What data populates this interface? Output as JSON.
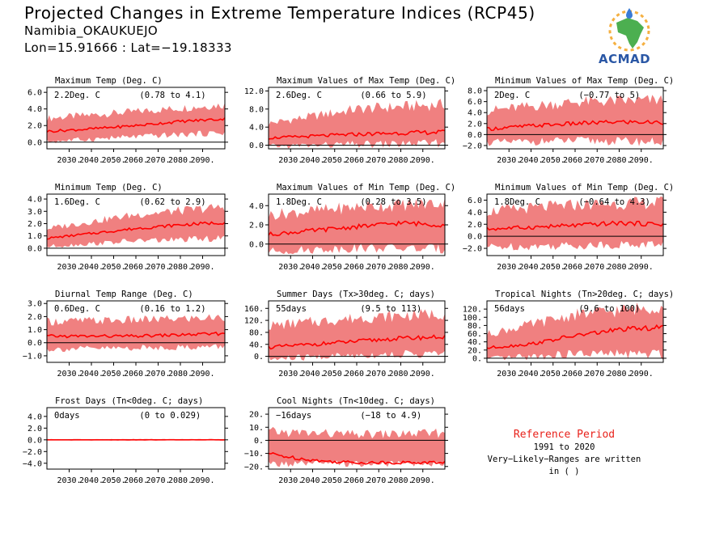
{
  "header": {
    "title": "Projected Changes in Extreme Temperature Indices (RCP45)",
    "station": "Namibia_OKAUKUEJO",
    "coords": "Lon=15.91666 : Lat=−19.18333"
  },
  "logo": {
    "text": "ACMAD",
    "colors": {
      "africa": "#4caf50",
      "sun": "#f5b041",
      "drop": "#3a7bd5"
    }
  },
  "reference": {
    "title": "Reference Period",
    "period": "1991 to 2020",
    "note": "Very−Likely−Ranges are written in ( )"
  },
  "colors": {
    "band": "#f08080",
    "line": "#ff0000",
    "zero": "#000000"
  },
  "chart_data": [
    {
      "type": "area",
      "title": "Maximum Temp (Deg. C)",
      "value_label": "2.2Deg. C",
      "range_label": "(0.78 to 4.1)",
      "ylim": [
        -0.8,
        6.6
      ],
      "yticks": [
        0,
        2,
        4,
        6
      ],
      "ytick_labels": [
        "0.0",
        "2.0",
        "4.0",
        "6.0"
      ],
      "x": [
        2020,
        2100
      ],
      "xticks": [
        2030,
        2040,
        2050,
        2060,
        2070,
        2080,
        2090
      ],
      "xtick_labels": [
        "2030.",
        "2040.",
        "2050.",
        "2060.",
        "2070.",
        "2080.",
        "2090."
      ],
      "median": [
        [
          2020,
          1.3
        ],
        [
          2040,
          1.6
        ],
        [
          2060,
          2.0
        ],
        [
          2080,
          2.5
        ],
        [
          2100,
          2.8
        ]
      ],
      "band_low": [
        [
          2020,
          0.2
        ],
        [
          2060,
          0.8
        ],
        [
          2100,
          1.3
        ]
      ],
      "band_high": [
        [
          2020,
          2.7
        ],
        [
          2060,
          3.5
        ],
        [
          2100,
          4.3
        ]
      ]
    },
    {
      "type": "area",
      "title": "Maximum Values of Max Temp (Deg. C)",
      "value_label": "2.6Deg. C",
      "range_label": "(0.66 to 5.9)",
      "ylim": [
        -0.8,
        12.8
      ],
      "yticks": [
        0,
        4,
        8,
        12
      ],
      "ytick_labels": [
        "0.0",
        "4.0",
        "8.0",
        "12.0"
      ],
      "x": [
        2020,
        2100
      ],
      "xticks": [
        2030,
        2040,
        2050,
        2060,
        2070,
        2080,
        2090
      ],
      "xtick_labels": [
        "2030.",
        "2040.",
        "2050.",
        "2060.",
        "2070.",
        "2080.",
        "2090."
      ],
      "median": [
        [
          2020,
          1.6
        ],
        [
          2040,
          2.0
        ],
        [
          2060,
          2.4
        ],
        [
          2080,
          2.7
        ],
        [
          2100,
          2.9
        ]
      ],
      "band_low": [
        [
          2020,
          0.0
        ],
        [
          2060,
          0.5
        ],
        [
          2100,
          0.8
        ]
      ],
      "band_high": [
        [
          2020,
          4.5
        ],
        [
          2060,
          7.5
        ],
        [
          2100,
          8.5
        ]
      ]
    },
    {
      "type": "area",
      "title": "Minimum Values of Max Temp (Deg. C)",
      "value_label": "2Deg. C",
      "range_label": "(−0.77 to 5)",
      "ylim": [
        -2.6,
        8.6
      ],
      "yticks": [
        -2,
        0,
        2,
        4,
        6,
        8
      ],
      "ytick_labels": [
        "−2.0",
        "0.0",
        "2.0",
        "4.0",
        "6.0",
        "8.0"
      ],
      "x": [
        2020,
        2100
      ],
      "xticks": [
        2030,
        2040,
        2050,
        2060,
        2070,
        2080,
        2090
      ],
      "xtick_labels": [
        "2030.",
        "2040.",
        "2050.",
        "2060.",
        "2070.",
        "2080.",
        "2090."
      ],
      "median": [
        [
          2020,
          1.0
        ],
        [
          2040,
          1.6
        ],
        [
          2060,
          2.0
        ],
        [
          2080,
          2.3
        ],
        [
          2100,
          2.2
        ]
      ],
      "band_low": [
        [
          2020,
          -1.2
        ],
        [
          2060,
          -0.8
        ],
        [
          2100,
          -1.0
        ]
      ],
      "band_high": [
        [
          2020,
          4.0
        ],
        [
          2060,
          5.5
        ],
        [
          2100,
          5.8
        ]
      ]
    },
    {
      "type": "area",
      "title": "Minimum Temp (Deg. C)",
      "value_label": "1.6Deg. C",
      "range_label": "(0.62 to 2.9)",
      "ylim": [
        -0.6,
        4.4
      ],
      "yticks": [
        0,
        1,
        2,
        3,
        4
      ],
      "ytick_labels": [
        "0.0",
        "1.0",
        "2.0",
        "3.0",
        "4.0"
      ],
      "x": [
        2020,
        2100
      ],
      "xticks": [
        2030,
        2040,
        2050,
        2060,
        2070,
        2080,
        2090
      ],
      "xtick_labels": [
        "2030.",
        "2040.",
        "2050.",
        "2060.",
        "2070.",
        "2080.",
        "2090."
      ],
      "median": [
        [
          2020,
          0.8
        ],
        [
          2040,
          1.2
        ],
        [
          2060,
          1.6
        ],
        [
          2080,
          1.9
        ],
        [
          2100,
          2.1
        ]
      ],
      "band_low": [
        [
          2020,
          0.2
        ],
        [
          2060,
          0.7
        ],
        [
          2100,
          0.9
        ]
      ],
      "band_high": [
        [
          2020,
          1.5
        ],
        [
          2060,
          2.6
        ],
        [
          2100,
          3.2
        ]
      ]
    },
    {
      "type": "area",
      "title": "Maximum Values of Min Temp (Deg. C)",
      "value_label": "1.8Deg. C",
      "range_label": "(0.28 to 3.5)",
      "ylim": [
        -1.2,
        5.2
      ],
      "yticks": [
        0,
        2,
        4
      ],
      "ytick_labels": [
        "0.0",
        "2.0",
        "4.0"
      ],
      "x": [
        2020,
        2100
      ],
      "xticks": [
        2030,
        2040,
        2050,
        2060,
        2070,
        2080,
        2090
      ],
      "xtick_labels": [
        "2030.",
        "2040.",
        "2050.",
        "2060.",
        "2070.",
        "2080.",
        "2090."
      ],
      "median": [
        [
          2020,
          1.0
        ],
        [
          2040,
          1.4
        ],
        [
          2060,
          1.8
        ],
        [
          2080,
          2.2
        ],
        [
          2100,
          2.0
        ]
      ],
      "band_low": [
        [
          2020,
          -0.6
        ],
        [
          2060,
          -0.2
        ],
        [
          2100,
          -0.3
        ]
      ],
      "band_high": [
        [
          2020,
          2.8
        ],
        [
          2060,
          3.6
        ],
        [
          2100,
          4.0
        ]
      ]
    },
    {
      "type": "area",
      "title": "Minimum Values of Min Temp (Deg. C)",
      "value_label": "1.8Deg. C",
      "range_label": "(−0.64 to 4.3)",
      "ylim": [
        -3.2,
        7.0
      ],
      "yticks": [
        -2,
        0,
        2,
        4,
        6
      ],
      "ytick_labels": [
        "−2.0",
        "0.0",
        "2.0",
        "4.0",
        "6.0"
      ],
      "x": [
        2020,
        2100
      ],
      "xticks": [
        2030,
        2040,
        2050,
        2060,
        2070,
        2080,
        2090
      ],
      "xtick_labels": [
        "2030.",
        "2040.",
        "2050.",
        "2060.",
        "2070.",
        "2080.",
        "2090."
      ],
      "median": [
        [
          2020,
          1.2
        ],
        [
          2040,
          1.5
        ],
        [
          2060,
          1.8
        ],
        [
          2080,
          2.2
        ],
        [
          2100,
          2.0
        ]
      ],
      "band_low": [
        [
          2020,
          -1.5
        ],
        [
          2060,
          -1.2
        ],
        [
          2100,
          -1.0
        ]
      ],
      "band_high": [
        [
          2020,
          3.8
        ],
        [
          2060,
          4.8
        ],
        [
          2100,
          5.2
        ]
      ]
    },
    {
      "type": "area",
      "title": "Diurnal Temp Range (Deg. C)",
      "value_label": "0.6Deg. C",
      "range_label": "(0.16 to 1.2)",
      "ylim": [
        -1.5,
        3.2
      ],
      "yticks": [
        -1,
        0,
        1,
        2,
        3
      ],
      "ytick_labels": [
        "−1.0",
        "0.0",
        "1.0",
        "2.0",
        "3.0"
      ],
      "x": [
        2020,
        2100
      ],
      "xticks": [
        2030,
        2040,
        2050,
        2060,
        2070,
        2080,
        2090
      ],
      "xtick_labels": [
        "2030.",
        "2040.",
        "2050.",
        "2060.",
        "2070.",
        "2080.",
        "2090."
      ],
      "median": [
        [
          2020,
          0.5
        ],
        [
          2040,
          0.5
        ],
        [
          2060,
          0.5
        ],
        [
          2080,
          0.6
        ],
        [
          2100,
          0.7
        ]
      ],
      "band_low": [
        [
          2020,
          -0.4
        ],
        [
          2060,
          -0.3
        ],
        [
          2100,
          -0.2
        ]
      ],
      "band_high": [
        [
          2020,
          1.5
        ],
        [
          2060,
          1.6
        ],
        [
          2100,
          1.8
        ]
      ]
    },
    {
      "type": "area",
      "title": "Summer Days (Tx>30deg. C; days)",
      "value_label": "55days",
      "range_label": "(9.5 to 113)",
      "ylim": [
        -20,
        185
      ],
      "yticks": [
        0,
        40,
        80,
        120,
        160
      ],
      "ytick_labels": [
        "0.",
        "40.",
        "80.",
        "120.",
        "160."
      ],
      "x": [
        2020,
        2100
      ],
      "xticks": [
        2030,
        2040,
        2050,
        2060,
        2070,
        2080,
        2090
      ],
      "xtick_labels": [
        "2030.",
        "2040.",
        "2050.",
        "2060.",
        "2070.",
        "2080.",
        "2090."
      ],
      "median": [
        [
          2020,
          30
        ],
        [
          2040,
          40
        ],
        [
          2060,
          50
        ],
        [
          2080,
          60
        ],
        [
          2100,
          65
        ]
      ],
      "band_low": [
        [
          2020,
          -5
        ],
        [
          2060,
          10
        ],
        [
          2100,
          15
        ]
      ],
      "band_high": [
        [
          2020,
          95
        ],
        [
          2060,
          120
        ],
        [
          2100,
          135
        ]
      ]
    },
    {
      "type": "area",
      "title": "Tropical Nights (Tn>20deg. C; days)",
      "value_label": "56days",
      "range_label": "(9.6 to 100)",
      "ylim": [
        -10,
        140
      ],
      "yticks": [
        0,
        20,
        40,
        60,
        80,
        100,
        120
      ],
      "ytick_labels": [
        "0.",
        "20.",
        "40.",
        "60.",
        "80.",
        "100.",
        "120."
      ],
      "x": [
        2020,
        2100
      ],
      "xticks": [
        2030,
        2040,
        2050,
        2060,
        2070,
        2080,
        2090
      ],
      "xtick_labels": [
        "2030.",
        "2040.",
        "2050.",
        "2060.",
        "2070.",
        "2080.",
        "2090."
      ],
      "median": [
        [
          2020,
          25
        ],
        [
          2040,
          35
        ],
        [
          2060,
          55
        ],
        [
          2080,
          70
        ],
        [
          2100,
          75
        ]
      ],
      "band_low": [
        [
          2020,
          0
        ],
        [
          2060,
          15
        ],
        [
          2100,
          15
        ]
      ],
      "band_high": [
        [
          2020,
          55
        ],
        [
          2060,
          100
        ],
        [
          2100,
          120
        ]
      ]
    },
    {
      "type": "area",
      "title": "Frost Days (Tn<0deg. C; days)",
      "value_label": "0days",
      "range_label": "(0 to 0.029)",
      "ylim": [
        -5,
        5.5
      ],
      "yticks": [
        -4,
        -2,
        0,
        2,
        4
      ],
      "ytick_labels": [
        "−4.0",
        "−2.0",
        "0.0",
        "2.0",
        "4.0"
      ],
      "x": [
        2020,
        2100
      ],
      "xticks": [
        2030,
        2040,
        2050,
        2060,
        2070,
        2080,
        2090
      ],
      "xtick_labels": [
        "2030.",
        "2040.",
        "2050.",
        "2060.",
        "2070.",
        "2080.",
        "2090."
      ],
      "median": [
        [
          2020,
          0
        ],
        [
          2100,
          0
        ]
      ],
      "band_low": [
        [
          2020,
          0
        ],
        [
          2100,
          0
        ]
      ],
      "band_high": [
        [
          2020,
          0.1
        ],
        [
          2100,
          0.1
        ]
      ]
    },
    {
      "type": "area",
      "title": "Cool Nights (Tn<10deg. C; days)",
      "value_label": "−16days",
      "range_label": "(−18 to 4.9)",
      "ylim": [
        -22,
        25
      ],
      "yticks": [
        -20,
        -10,
        0,
        10,
        20
      ],
      "ytick_labels": [
        "−20.",
        "−10.",
        "0.",
        "10.",
        "20."
      ],
      "x": [
        2020,
        2100
      ],
      "xticks": [
        2030,
        2040,
        2050,
        2060,
        2070,
        2080,
        2090
      ],
      "xtick_labels": [
        "2030.",
        "2040.",
        "2050.",
        "2060.",
        "2070.",
        "2080.",
        "2090."
      ],
      "median": [
        [
          2020,
          -10
        ],
        [
          2030,
          -13
        ],
        [
          2045,
          -16
        ],
        [
          2060,
          -17
        ],
        [
          2100,
          -17
        ]
      ],
      "band_low": [
        [
          2020,
          -17
        ],
        [
          2100,
          -17
        ]
      ],
      "band_high": [
        [
          2020,
          5
        ],
        [
          2060,
          3
        ],
        [
          2100,
          4
        ]
      ]
    }
  ]
}
